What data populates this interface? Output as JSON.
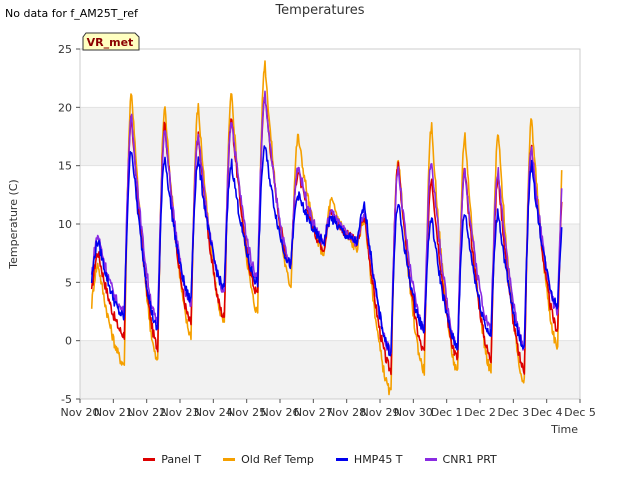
{
  "header": {
    "note": "No data for f_AM25T_ref",
    "title": "Temperatures"
  },
  "badge": {
    "label": "VR_met"
  },
  "chart_data": {
    "type": "line",
    "title": "Temperatures",
    "xlabel": "Time",
    "ylabel": "Temperature (C)",
    "ylim": [
      -5,
      25
    ],
    "xlim": [
      0,
      15
    ],
    "yticks": [
      -5,
      0,
      5,
      10,
      15,
      20,
      25
    ],
    "xtick_labels": [
      "Nov 20",
      "Nov 21",
      "Nov 22",
      "Nov 23",
      "Nov 24",
      "Nov 25",
      "Nov 26",
      "Nov 27",
      "Nov 28",
      "Nov 29",
      "Nov 30",
      "Dec 1",
      "Dec 2",
      "Dec 3",
      "Dec 4",
      "Dec 5"
    ],
    "legend_position": "bottom",
    "bands": [
      [
        -5,
        0
      ],
      [
        5,
        10
      ],
      [
        15,
        20
      ]
    ],
    "series": [
      {
        "name": "Panel T",
        "color": "#dd0000",
        "daily_min": [
          3.5,
          0.5,
          -0.5,
          1.5,
          2.0,
          4.0,
          6.5,
          8.0,
          8.5,
          -2.5,
          -1.0,
          -1.5,
          -1.5,
          -2.5,
          1.0
        ],
        "daily_max": [
          null,
          19.0,
          18.5,
          17.5,
          19.0,
          21.0,
          14.5,
          11.0,
          10.5,
          15.0,
          14.0,
          14.5,
          14.0,
          16.5,
          15.5
        ]
      },
      {
        "name": "Old Ref Temp",
        "color": "#f5a000",
        "daily_min": [
          2.5,
          -2.0,
          -1.8,
          0.5,
          1.5,
          2.5,
          4.8,
          7.5,
          8.0,
          -4.5,
          -2.5,
          -2.8,
          -2.5,
          -3.5,
          -0.5
        ],
        "daily_max": [
          null,
          21.3,
          20.0,
          20.0,
          21.0,
          23.8,
          17.5,
          12.0,
          10.5,
          15.8,
          18.3,
          17.7,
          17.7,
          19.0,
          19.0
        ]
      },
      {
        "name": "HMP45 T",
        "color": "#0000ee",
        "daily_min": [
          4.5,
          2.0,
          1.0,
          3.5,
          4.5,
          5.0,
          6.5,
          8.5,
          8.5,
          -1.0,
          1.0,
          -0.5,
          0.5,
          -0.5,
          3.0
        ],
        "daily_max": [
          null,
          16.5,
          15.7,
          15.5,
          15.2,
          16.7,
          12.5,
          10.5,
          11.5,
          11.8,
          10.5,
          11.0,
          11.0,
          15.0,
          12.0
        ]
      },
      {
        "name": "CNR1 PRT",
        "color": "#8a2be2",
        "daily_min": [
          5.0,
          2.5,
          1.5,
          3.0,
          4.0,
          5.5,
          6.5,
          8.5,
          8.5,
          -1.0,
          1.0,
          -0.5,
          1.0,
          -0.5,
          2.5
        ],
        "daily_max": [
          null,
          19.0,
          18.0,
          17.5,
          19.0,
          21.0,
          15.0,
          11.0,
          11.0,
          14.8,
          15.5,
          14.5,
          14.5,
          16.5,
          16.0
        ]
      }
    ]
  }
}
